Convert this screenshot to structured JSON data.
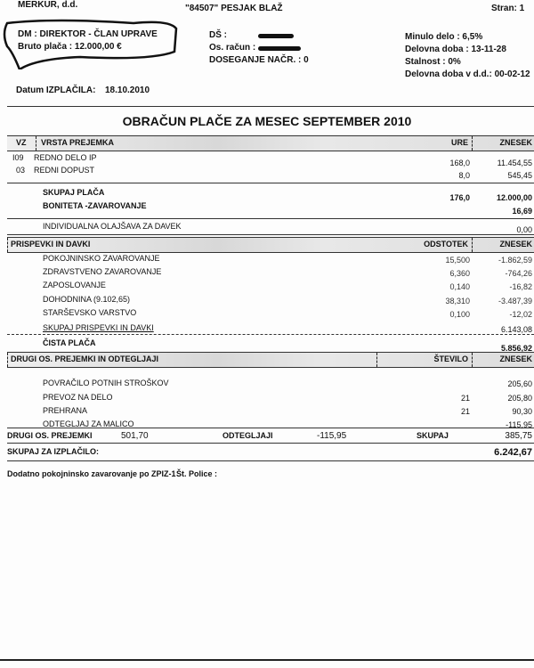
{
  "header": {
    "company": "MERKUR, d.d.",
    "employee": "\"84507\" PESJAK BLAŽ",
    "page": "Stran: 1",
    "position": "DM :  DIREKTOR - ČLAN UPRAVE",
    "gross": "Bruto plača :  12.000,00 €",
    "ds_label": "DŠ :",
    "account_label": "Os. račun :",
    "dosegenje": "DOSEGANJE NAČR. :  0",
    "minulo_delo": "Minulo delo :  6,5%",
    "delovna_doba": "Delovna doba : 13-11-28",
    "stalnost": "Stalnost :  0%",
    "delovna_doba_dd": "Delovna doba v d.d.: 00-02-12",
    "datum_label": "Datum IZPLAČILA:",
    "datum": "18.10.2010"
  },
  "title": "OBRAČUN PLAČE ZA MESEC SEPTEMBER 2010",
  "earnings": {
    "col_vz": "VZ",
    "col_vrsta": "VRSTA PREJEMKA",
    "col_ure": "URE",
    "col_znesek": "ZNESEK",
    "rows": [
      {
        "code": "I09",
        "name": "REDNO DELO IP",
        "hours": "168,0",
        "amount": "11.454,55"
      },
      {
        "code": "03",
        "name": "REDNI DOPUST",
        "hours": "8,0",
        "amount": "545,45"
      }
    ],
    "total_label": "SKUPAJ PLAČA",
    "total_hours": "176,0",
    "total_amount": "12.000,00",
    "boniteta_label": "BONITETA -ZAVAROVANJE",
    "boniteta_amount": "16,69",
    "olajsava_label": "INDIVIDUALNA OLAJŠAVA ZA DAVEK",
    "olajsava_amount": "0,00"
  },
  "contributions": {
    "header": "PRISPEVKI IN DAVKI",
    "col_pct": "ODSTOTEK",
    "col_amount": "ZNESEK",
    "rows": [
      {
        "name": "POKOJNINSKO ZAVAROVANJE",
        "pct": "15,500",
        "amount": "-1.862,59"
      },
      {
        "name": "ZDRAVSTVENO ZAVAROVANJE",
        "pct": "6,360",
        "amount": "-764,26"
      },
      {
        "name": "ZAPOSLOVANJE",
        "pct": "0,140",
        "amount": "-16,82"
      },
      {
        "name": "DOHODNINA (9.102,65)",
        "pct": "38,310",
        "amount": "-3.487,39"
      },
      {
        "name": "STARŠEVSKO VARSTVO",
        "pct": "0,100",
        "amount": "-12,02"
      }
    ],
    "total_label": "SKUPAJ PRISPEVKI IN DAVKI",
    "total_amount": "6.143,08",
    "net_label": "ČISTA PLAČA",
    "net_amount": "5.856,92"
  },
  "other": {
    "header": "DRUGI OS. PREJEMKI IN ODTEGLJAJI",
    "col_count": "ŠTEVILO",
    "col_amount": "ZNESEK",
    "rows": [
      {
        "name": "POVRAČILO POTNIH STROŠKOV",
        "count": "",
        "amount": "205,60"
      },
      {
        "name": "PREVOZ NA DELO",
        "count": "21",
        "amount": "205,80"
      },
      {
        "name": "PREHRANA",
        "count": "21",
        "amount": "90,30"
      },
      {
        "name": "ODTEGLJAJ ZA MALICO",
        "count": "",
        "amount": "-115,95"
      }
    ],
    "summary_income_label": "DRUGI OS. PREJEMKI",
    "summary_income": "501,70",
    "summary_deduct_label": "ODTEGLJAJI",
    "summary_deduct": "-115,95",
    "summary_total_label": "SKUPAJ",
    "summary_total": "385,75"
  },
  "payout_label": "SKUPAJ ZA IZPLAČILO:",
  "payout_amount": "6.242,67",
  "footer": {
    "pension": "Dodatno pokojninsko zavarovanje po ZPIZ-1",
    "policy": "Št. Police :"
  }
}
